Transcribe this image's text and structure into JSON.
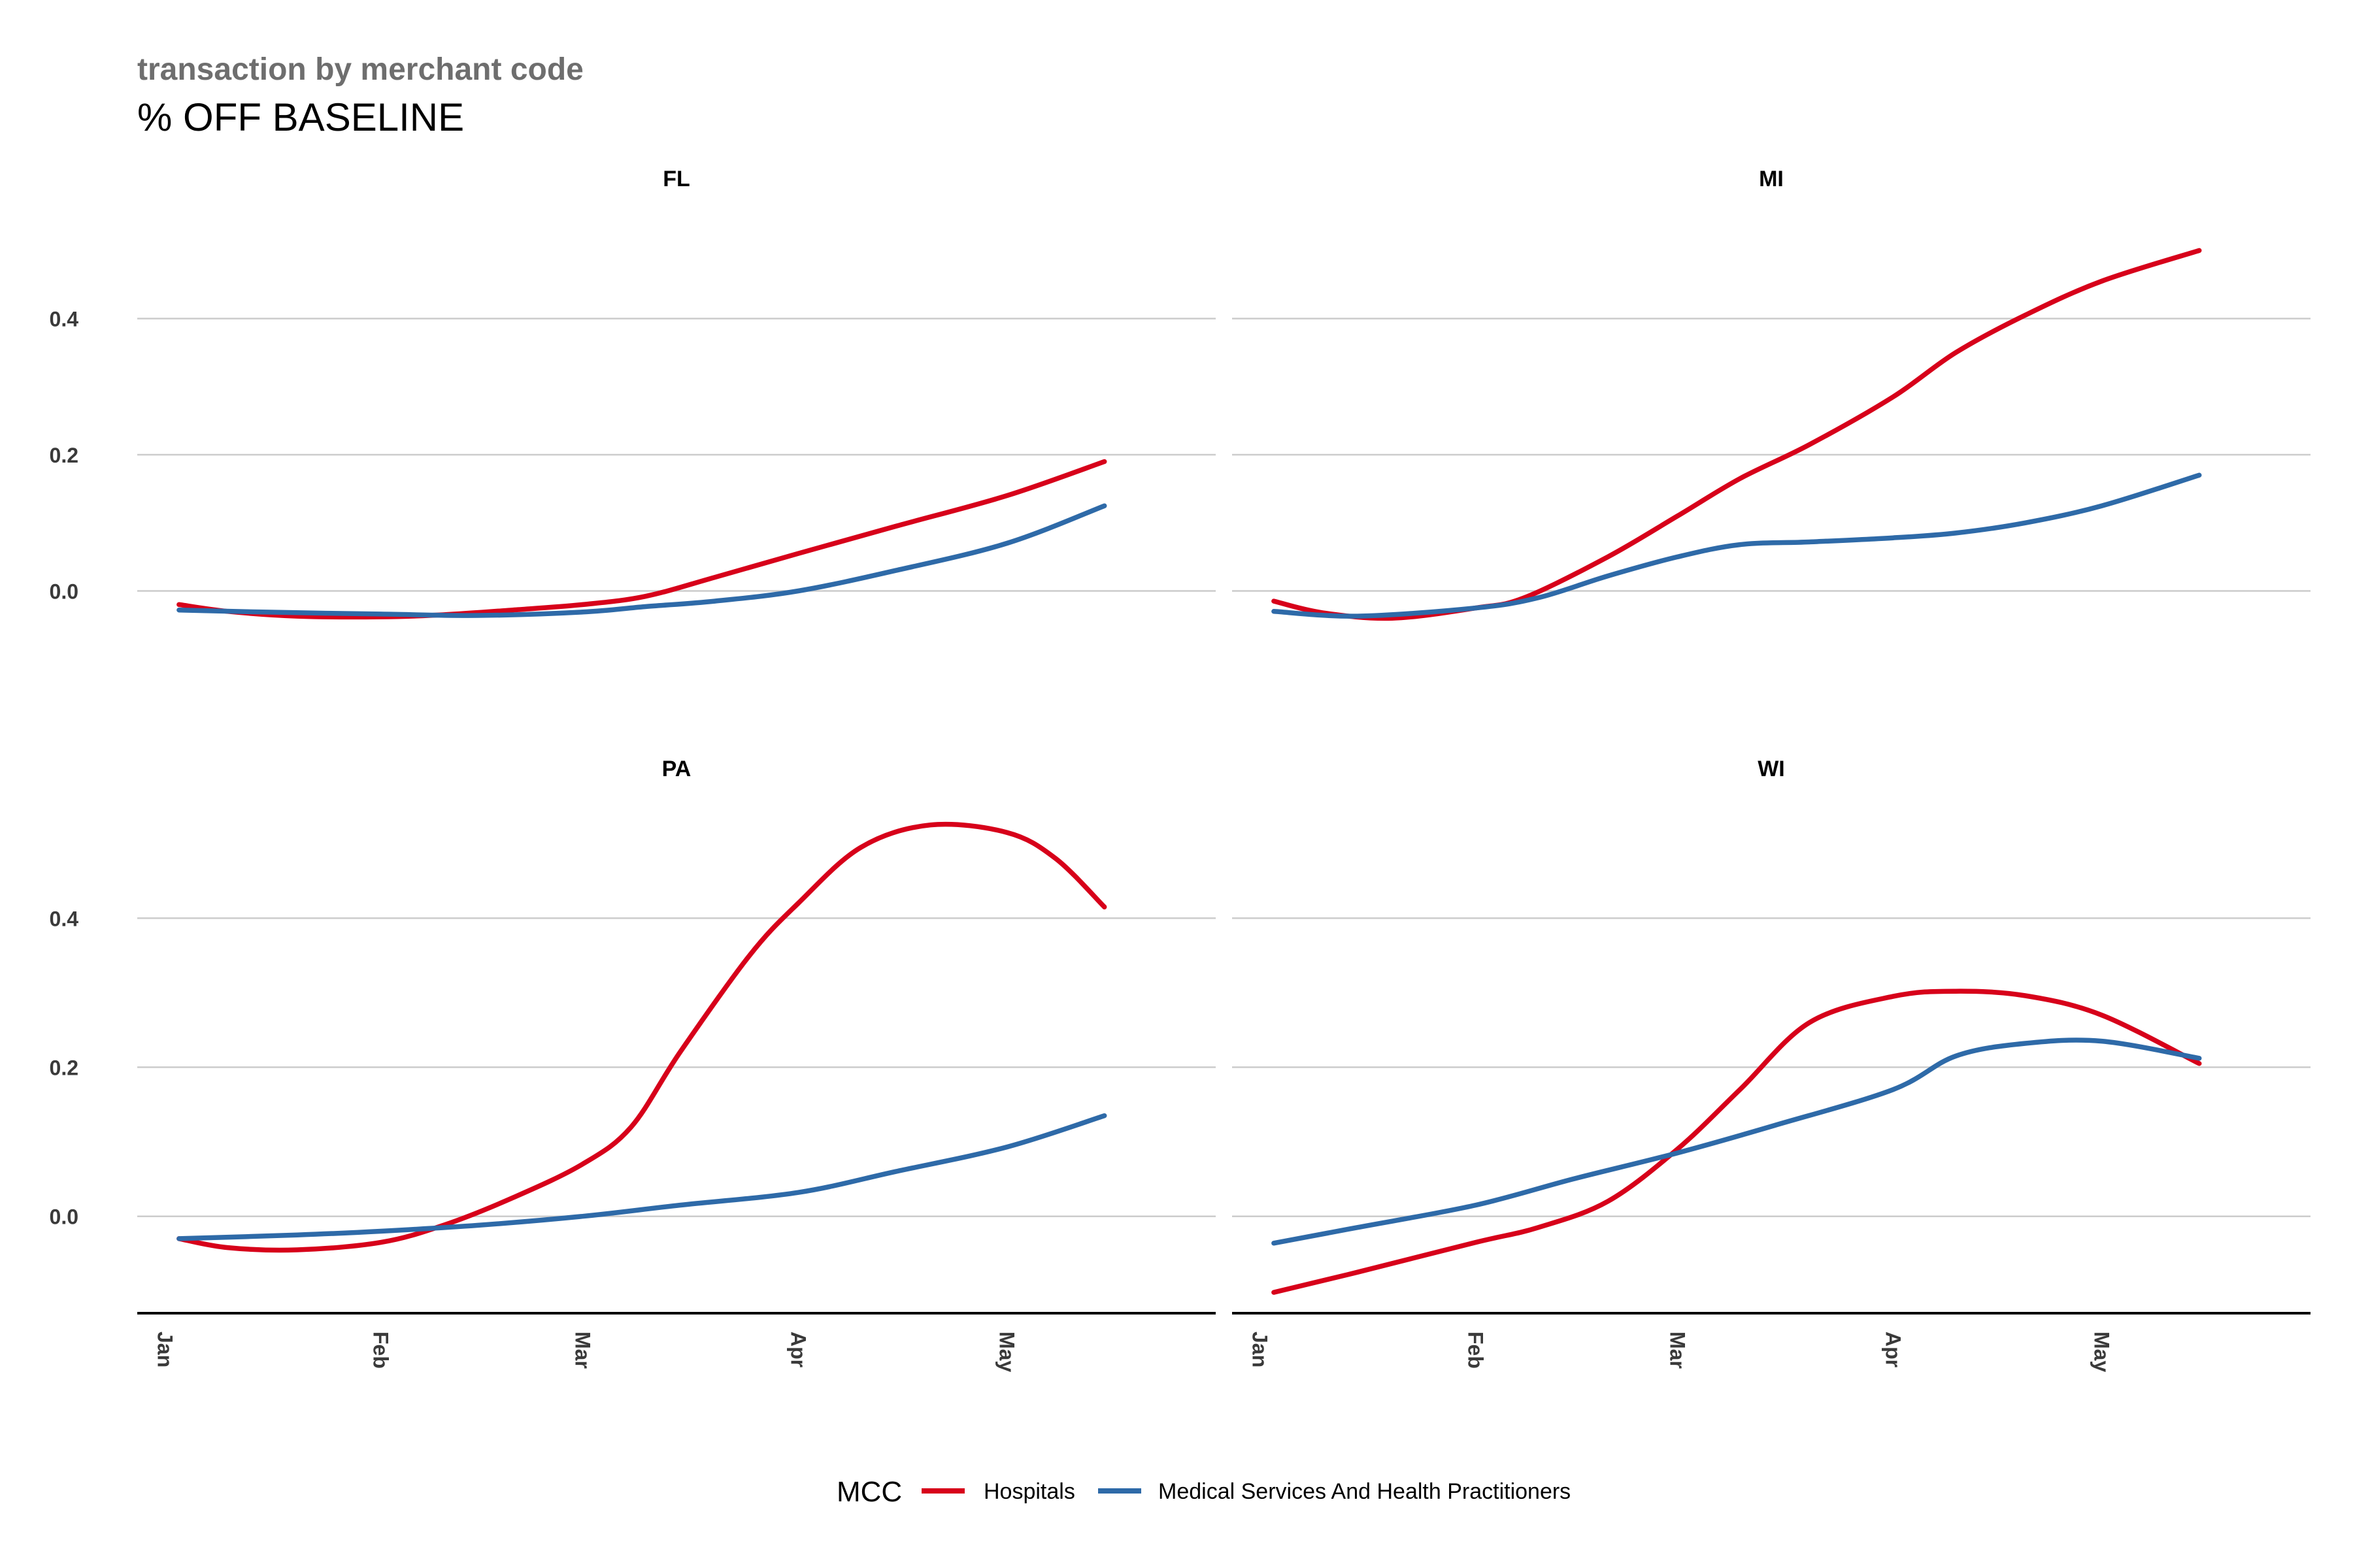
{
  "chart_data": {
    "type": "line",
    "title": "% OFF BASELINE",
    "subtitle": "transaction by merchant code",
    "x_ticks": [
      "Jan",
      "Feb",
      "Mar",
      "Apr",
      "May"
    ],
    "x_tick_dates": [
      "2020-01-01",
      "2020-02-01",
      "2020-03-01",
      "2020-04-01",
      "2020-05-01"
    ],
    "xlim": [
      "2019-12-28",
      "2020-05-31"
    ],
    "ylim": [
      -0.13,
      0.58
    ],
    "y_ticks": [
      "0.0",
      "0.2",
      "0.4"
    ],
    "y_tick_values": [
      0.0,
      0.2,
      0.4
    ],
    "grid": "horizontal major gridlines",
    "legend": {
      "title": "MCC",
      "position": "bottom",
      "entries": [
        "Hospitals",
        "Medical Services And Health Practitioners"
      ]
    },
    "colors": {
      "Hospitals": "#d7001a",
      "Medical Services And Health Practitioners": "#2e6aa8"
    },
    "facets": [
      {
        "label": "FL",
        "series": [
          {
            "name": "Hospitals",
            "x": [
              "2020-01-03",
              "2020-01-10",
              "2020-01-20",
              "2020-02-01",
              "2020-02-10",
              "2020-02-20",
              "2020-03-01",
              "2020-03-10",
              "2020-03-20",
              "2020-04-01",
              "2020-04-15",
              "2020-05-01",
              "2020-05-15"
            ],
            "y": [
              -0.02,
              -0.03,
              -0.037,
              -0.038,
              -0.035,
              -0.028,
              -0.02,
              -0.008,
              0.02,
              0.055,
              0.095,
              0.14,
              0.19
            ]
          },
          {
            "name": "Medical Services And Health Practitioners",
            "x": [
              "2020-01-03",
              "2020-01-15",
              "2020-02-01",
              "2020-02-15",
              "2020-03-01",
              "2020-03-10",
              "2020-03-20",
              "2020-04-01",
              "2020-04-15",
              "2020-05-01",
              "2020-05-15"
            ],
            "y": [
              -0.028,
              -0.031,
              -0.034,
              -0.036,
              -0.031,
              -0.023,
              -0.015,
              0.0,
              0.03,
              0.07,
              0.125
            ]
          }
        ]
      },
      {
        "label": "MI",
        "series": [
          {
            "name": "Hospitals",
            "x": [
              "2020-01-03",
              "2020-01-10",
              "2020-01-20",
              "2020-02-01",
              "2020-02-08",
              "2020-02-20",
              "2020-03-01",
              "2020-03-10",
              "2020-03-20",
              "2020-04-01",
              "2020-04-10",
              "2020-04-20",
              "2020-05-01",
              "2020-05-15"
            ],
            "y": [
              -0.015,
              -0.032,
              -0.04,
              -0.025,
              -0.01,
              0.05,
              0.11,
              0.165,
              0.215,
              0.285,
              0.35,
              0.405,
              0.455,
              0.5
            ]
          },
          {
            "name": "Medical Services And Health Practitioners",
            "x": [
              "2020-01-03",
              "2020-01-15",
              "2020-02-01",
              "2020-02-10",
              "2020-02-20",
              "2020-03-01",
              "2020-03-10",
              "2020-03-20",
              "2020-04-01",
              "2020-04-10",
              "2020-04-20",
              "2020-05-01",
              "2020-05-15"
            ],
            "y": [
              -0.03,
              -0.037,
              -0.025,
              -0.01,
              0.022,
              0.05,
              0.068,
              0.072,
              0.078,
              0.085,
              0.1,
              0.125,
              0.17
            ]
          }
        ]
      },
      {
        "label": "PA",
        "series": [
          {
            "name": "Hospitals",
            "x": [
              "2020-01-03",
              "2020-01-10",
              "2020-01-20",
              "2020-02-01",
              "2020-02-10",
              "2020-02-20",
              "2020-03-01",
              "2020-03-08",
              "2020-03-15",
              "2020-03-25",
              "2020-04-01",
              "2020-04-10",
              "2020-04-20",
              "2020-05-01",
              "2020-05-08",
              "2020-05-15"
            ],
            "y": [
              -0.03,
              -0.042,
              -0.045,
              -0.035,
              -0.012,
              0.025,
              0.07,
              0.12,
              0.22,
              0.35,
              0.42,
              0.495,
              0.525,
              0.515,
              0.48,
              0.415
            ]
          },
          {
            "name": "Medical Services And Health Practitioners",
            "x": [
              "2020-01-03",
              "2020-01-20",
              "2020-02-01",
              "2020-02-15",
              "2020-03-01",
              "2020-03-15",
              "2020-04-01",
              "2020-04-15",
              "2020-05-01",
              "2020-05-15"
            ],
            "y": [
              -0.03,
              -0.025,
              -0.02,
              -0.012,
              0.0,
              0.015,
              0.032,
              0.06,
              0.093,
              0.135
            ]
          }
        ]
      },
      {
        "label": "WI",
        "series": [
          {
            "name": "Hospitals",
            "x": [
              "2020-01-03",
              "2020-01-15",
              "2020-02-01",
              "2020-02-10",
              "2020-02-20",
              "2020-03-01",
              "2020-03-10",
              "2020-03-20",
              "2020-04-01",
              "2020-04-10",
              "2020-04-20",
              "2020-05-01",
              "2020-05-15"
            ],
            "y": [
              -0.102,
              -0.075,
              -0.035,
              -0.015,
              0.02,
              0.09,
              0.17,
              0.26,
              0.295,
              0.302,
              0.296,
              0.27,
              0.205
            ]
          },
          {
            "name": "Medical Services And Health Practitioners",
            "x": [
              "2020-01-03",
              "2020-01-15",
              "2020-02-01",
              "2020-02-15",
              "2020-03-01",
              "2020-03-15",
              "2020-04-01",
              "2020-04-10",
              "2020-04-20",
              "2020-05-01",
              "2020-05-15"
            ],
            "y": [
              -0.036,
              -0.015,
              0.015,
              0.05,
              0.085,
              0.122,
              0.17,
              0.215,
              0.232,
              0.235,
              0.212
            ]
          }
        ]
      }
    ]
  }
}
